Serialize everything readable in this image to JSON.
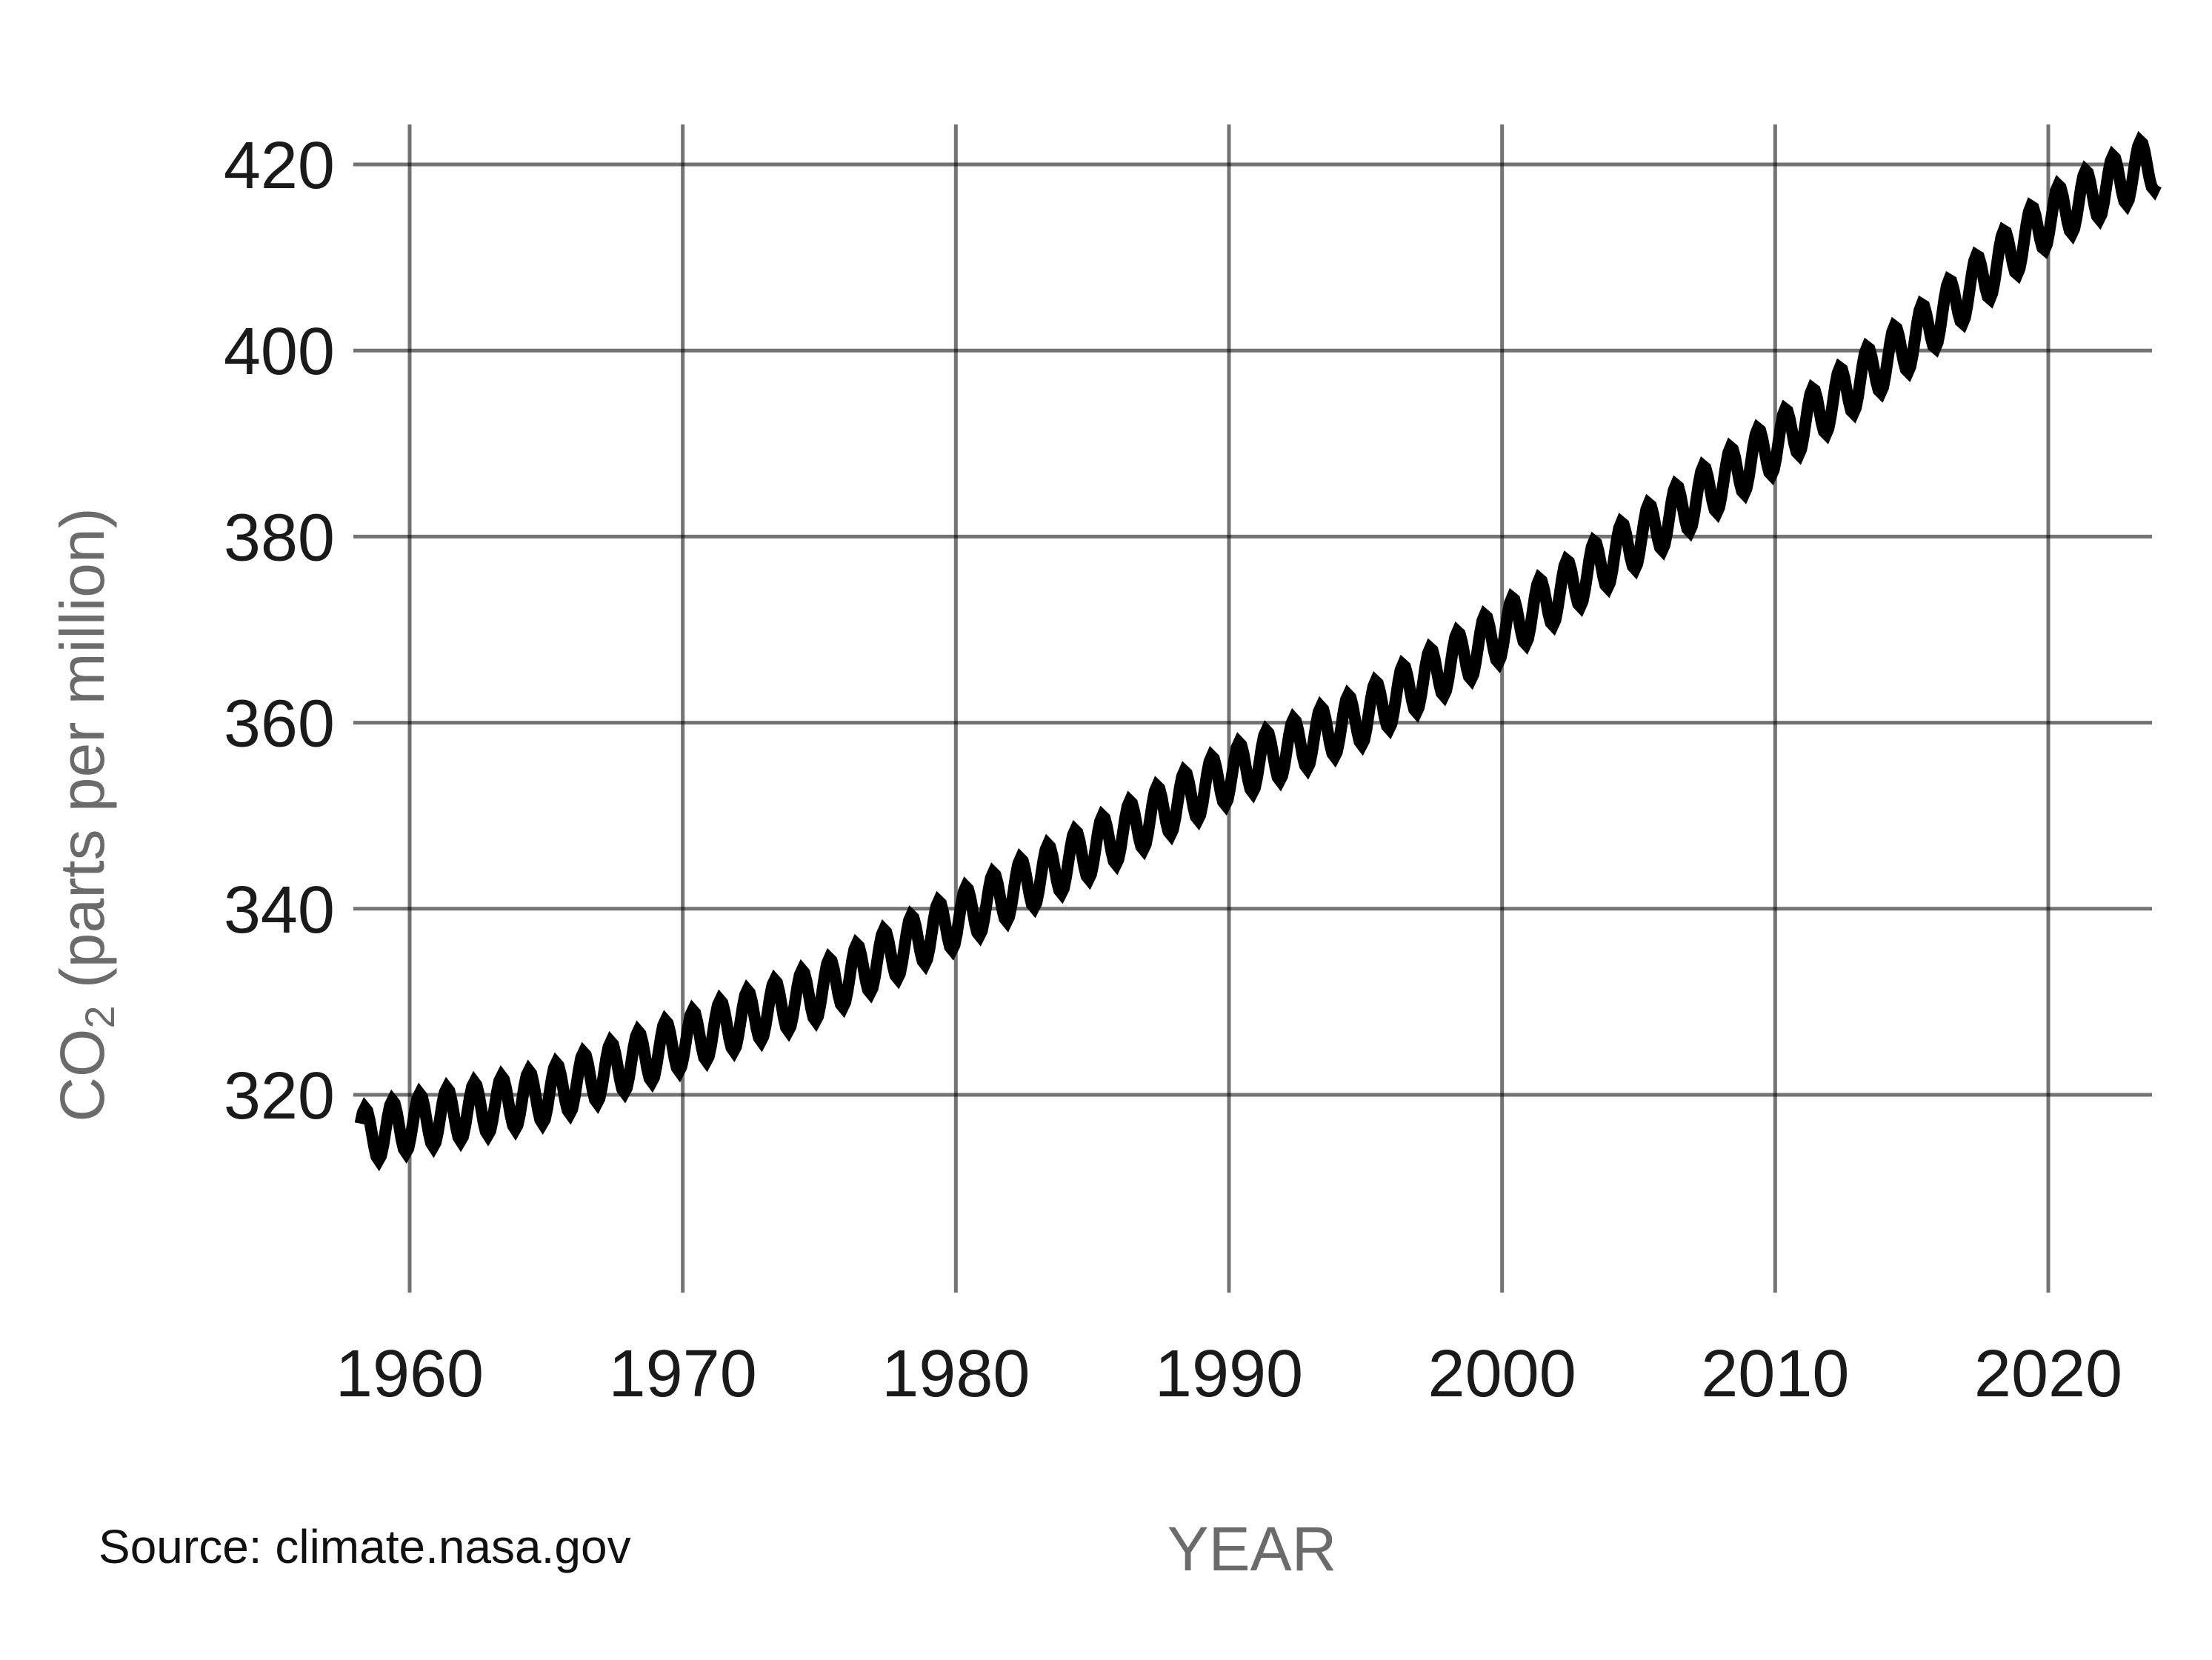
{
  "chart_data": {
    "type": "line",
    "title": "",
    "xlabel": "YEAR",
    "ylabel": {
      "main": "CO",
      "subscript": "2",
      "rest": " (parts per million)"
    },
    "source": "Source: climate.nasa.gov",
    "xlim": [
      1958,
      2024
    ],
    "ylim": [
      303,
      424
    ],
    "x_ticks": [
      1960,
      1970,
      1980,
      1990,
      2000,
      2010,
      2020
    ],
    "y_ticks": [
      320,
      340,
      360,
      380,
      400,
      420
    ],
    "grid": true,
    "legend": "none",
    "line_color": "#000000",
    "series": [
      {
        "seasonal_amplitude_ppm": 6,
        "x": [
          1958,
          1960,
          1965,
          1970,
          1975,
          1980,
          1985,
          1990,
          1995,
          2000,
          2005,
          2010,
          2015,
          2020,
          2024
        ],
        "y": [
          315.3,
          316.9,
          320.0,
          325.7,
          331.1,
          338.8,
          346.4,
          354.4,
          360.8,
          369.7,
          379.8,
          389.9,
          401.0,
          414.2,
          420.5
        ]
      }
    ]
  }
}
